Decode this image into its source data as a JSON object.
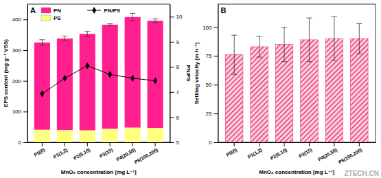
{
  "chart_data": [
    {
      "type": "bar",
      "title": "A",
      "stacked": true,
      "legend": "top-left",
      "categories": [
        "P0(0)",
        "P1(1,2)",
        "P2(5,10)",
        "P3(15)",
        "P4(20,50)",
        "P5(100,200)"
      ],
      "series": [
        {
          "name": "PS",
          "color": "#ffff80",
          "values": [
            41,
            40,
            39,
            44,
            48,
            47
          ]
        },
        {
          "name": "PN",
          "color": "#ff1f8f",
          "values": [
            284,
            298,
            314,
            339,
            360,
            349
          ],
          "errors": [
            9,
            8,
            8,
            3,
            12,
            6
          ]
        },
        {
          "name": "PN/PS",
          "type": "line",
          "axis": "y2",
          "color": "#000000",
          "marker": "diamond",
          "values": [
            6.93,
            7.55,
            8.05,
            7.7,
            7.55,
            7.45
          ]
        }
      ],
      "x_label": "MnO₂ concentration [mg L⁻¹]",
      "y_label": "EPS content (mg g⁻¹ VSS)",
      "y2_label": "PN/PS",
      "ylim": [
        0,
        450
      ],
      "yticks": [
        0,
        100,
        200,
        300,
        400
      ],
      "y2lim": [
        5,
        10.5
      ],
      "y2ticks": [
        5,
        6,
        7,
        8,
        9,
        10
      ]
    },
    {
      "type": "bar",
      "title": "B",
      "categories": [
        "P0(0)",
        "P1(1,2)",
        "P2(5,10)",
        "P3(15)",
        "P4(20,50)",
        "P5(100,200)"
      ],
      "values": [
        76,
        83,
        85,
        89,
        90,
        90
      ],
      "errors": [
        17,
        9,
        15,
        19,
        19,
        13
      ],
      "color": "#e8336d",
      "x_label": "MnO₂ concentration [mg L⁻¹]",
      "y_label": "Settling velocity (m h⁻¹)",
      "ylim": [
        0,
        120
      ],
      "yticks": [
        0,
        25,
        50,
        75,
        100
      ],
      "annotations": [
        {
          "text": "ZTECH.CN"
        }
      ]
    }
  ]
}
